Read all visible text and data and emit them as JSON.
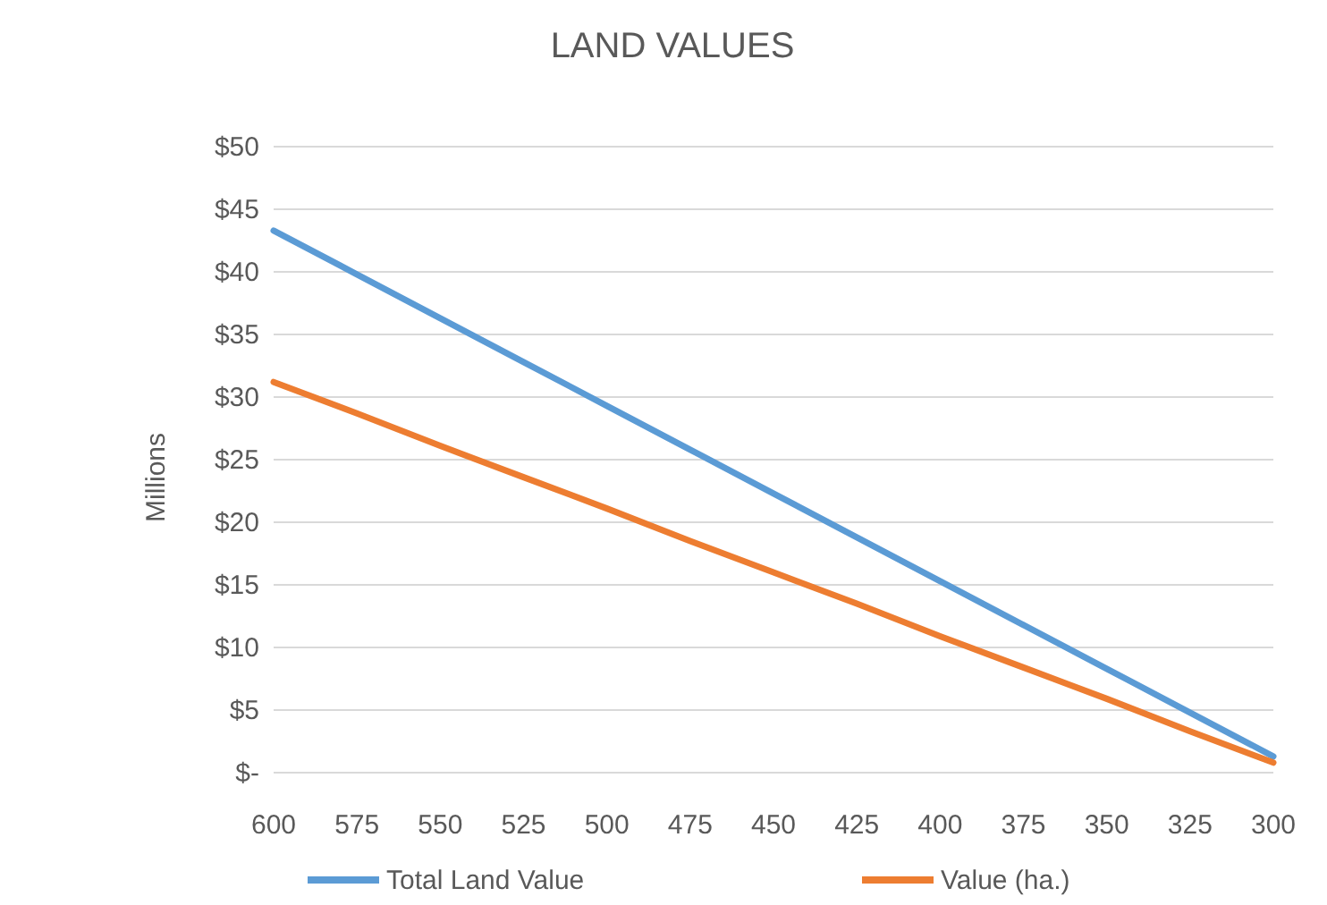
{
  "chart_data": {
    "type": "line",
    "title": "LAND VALUES",
    "ylabel": "Millions",
    "x": [
      600,
      575,
      550,
      525,
      500,
      475,
      450,
      425,
      400,
      375,
      350,
      325,
      300
    ],
    "xlim": [
      600,
      300
    ],
    "xticks": [
      600,
      575,
      550,
      525,
      500,
      475,
      450,
      425,
      400,
      375,
      350,
      325,
      300
    ],
    "ylim": [
      0,
      50
    ],
    "yticks": [
      {
        "value": 0,
        "label": "$-"
      },
      {
        "value": 5,
        "label": "$5"
      },
      {
        "value": 10,
        "label": "$10"
      },
      {
        "value": 15,
        "label": "$15"
      },
      {
        "value": 20,
        "label": "$20"
      },
      {
        "value": 25,
        "label": "$25"
      },
      {
        "value": 30,
        "label": "$30"
      },
      {
        "value": 35,
        "label": "$35"
      },
      {
        "value": 40,
        "label": "$40"
      },
      {
        "value": 45,
        "label": "$45"
      },
      {
        "value": 50,
        "label": "$50"
      }
    ],
    "grid": "y",
    "legend": "bottom",
    "marker": "none",
    "line_style": "solid",
    "series": [
      {
        "name": "Total Land Value",
        "color": "#5b9bd5",
        "values": [
          43.3,
          39.8,
          36.3,
          32.8,
          29.3,
          25.8,
          22.3,
          18.8,
          15.3,
          11.8,
          8.3,
          4.8,
          1.3
        ]
      },
      {
        "name": "Value (ha.)",
        "color": "#ed7d31",
        "values": [
          31.2,
          28.7,
          26.1,
          23.6,
          21.1,
          18.5,
          16.0,
          13.5,
          10.9,
          8.4,
          5.9,
          3.3,
          0.8
        ]
      }
    ]
  }
}
